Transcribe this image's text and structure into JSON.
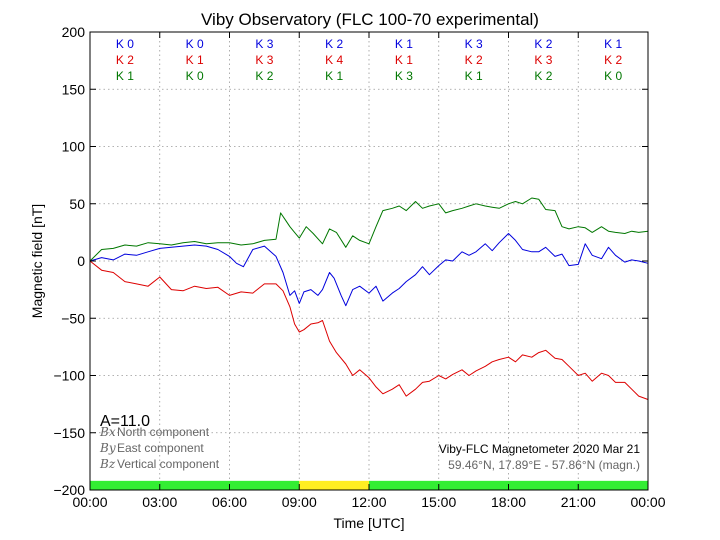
{
  "chart_data": {
    "type": "line",
    "title": "Viby Observatory (FLC 100-70 experimental)",
    "xlabel": "Time [UTC]",
    "ylabel": "Magnetic field [nT]",
    "xlim": [
      0,
      24
    ],
    "ylim": [
      -200,
      200
    ],
    "x_ticks": [
      "00:00",
      "03:00",
      "06:00",
      "09:00",
      "12:00",
      "15:00",
      "18:00",
      "21:00",
      "00:00"
    ],
    "y_ticks": [
      -200,
      -150,
      -100,
      -50,
      0,
      50,
      100,
      150,
      200
    ],
    "grid": true,
    "annotation": "A=11.0",
    "info": {
      "line1": "Viby-FLC Magnetometer 2020 Mar 21",
      "line2": "59.46°N, 17.89°E - 57.86°N (magn.)"
    },
    "k_indices": {
      "north": [
        "K 0",
        "K 0",
        "K 3",
        "K 2",
        "K 1",
        "K 3",
        "K 2",
        "K 1"
      ],
      "east": [
        "K 2",
        "K 1",
        "K 3",
        "K 4",
        "K 1",
        "K 2",
        "K 3",
        "K 2"
      ],
      "vertical": [
        "K 1",
        "K 0",
        "K 2",
        "K 1",
        "K 3",
        "K 1",
        "K 2",
        "K 0"
      ]
    },
    "activity_bar": [
      {
        "start": 0,
        "end": 9,
        "color": "#33ee33"
      },
      {
        "start": 9,
        "end": 12,
        "color": "#ffee22"
      },
      {
        "start": 12,
        "end": 24,
        "color": "#33ee33"
      }
    ],
    "series": [
      {
        "name": "North component",
        "symbol": "Bx",
        "color": "#0000dd",
        "x": [
          0,
          0.5,
          1,
          1.5,
          2,
          2.5,
          3,
          3.5,
          4,
          4.5,
          5,
          5.5,
          6,
          6.3,
          6.6,
          7,
          7.5,
          8,
          8.3,
          8.6,
          8.8,
          9,
          9.2,
          9.5,
          9.8,
          10,
          10.3,
          10.5,
          10.8,
          11,
          11.3,
          11.6,
          12,
          12.3,
          12.6,
          13,
          13.3,
          13.6,
          14,
          14.3,
          14.6,
          15,
          15.3,
          15.6,
          16,
          16.3,
          16.6,
          17,
          17.3,
          17.6,
          18,
          18.3,
          18.6,
          19,
          19.3,
          19.6,
          20,
          20.3,
          20.6,
          21,
          21.3,
          21.6,
          22,
          22.3,
          22.6,
          23,
          23.3,
          23.6,
          24
        ],
        "y": [
          0,
          3,
          1,
          6,
          5,
          8,
          11,
          12,
          13,
          14,
          13,
          10,
          4,
          -2,
          -5,
          10,
          13,
          4,
          -10,
          -30,
          -26,
          -37,
          -27,
          -25,
          -30,
          -25,
          -10,
          -15,
          -30,
          -39,
          -25,
          -22,
          -28,
          -22,
          -35,
          -28,
          -24,
          -18,
          -12,
          -5,
          -12,
          -4,
          1,
          0,
          8,
          5,
          8,
          15,
          9,
          16,
          24,
          18,
          10,
          8,
          8,
          12,
          4,
          6,
          -4,
          -3,
          15,
          5,
          2,
          12,
          5,
          -1,
          1,
          0,
          -2
        ]
      },
      {
        "name": "East component",
        "symbol": "By",
        "color": "#dd0000",
        "x": [
          0,
          0.5,
          1,
          1.5,
          2,
          2.5,
          3,
          3.5,
          4,
          4.5,
          5,
          5.5,
          6,
          6.5,
          7,
          7.5,
          8,
          8.3,
          8.6,
          8.8,
          9,
          9.2,
          9.5,
          9.8,
          10,
          10.3,
          10.6,
          11,
          11.3,
          11.6,
          12,
          12.3,
          12.6,
          13,
          13.3,
          13.6,
          14,
          14.3,
          14.6,
          15,
          15.3,
          15.6,
          16,
          16.3,
          16.6,
          17,
          17.3,
          17.6,
          18,
          18.3,
          18.6,
          19,
          19.3,
          19.6,
          20,
          20.3,
          20.6,
          21,
          21.3,
          21.6,
          22,
          22.3,
          22.6,
          23,
          23.3,
          23.6,
          24
        ],
        "y": [
          0,
          -8,
          -10,
          -18,
          -20,
          -22,
          -14,
          -25,
          -26,
          -22,
          -24,
          -23,
          -30,
          -27,
          -28,
          -20,
          -20,
          -26,
          -40,
          -55,
          -62,
          -60,
          -55,
          -54,
          -52,
          -70,
          -80,
          -90,
          -100,
          -95,
          -102,
          -110,
          -116,
          -112,
          -108,
          -118,
          -112,
          -106,
          -105,
          -100,
          -103,
          -99,
          -95,
          -100,
          -96,
          -92,
          -88,
          -86,
          -84,
          -88,
          -82,
          -84,
          -80,
          -78,
          -85,
          -86,
          -92,
          -100,
          -98,
          -105,
          -98,
          -100,
          -106,
          -106,
          -112,
          -118,
          -121
        ]
      },
      {
        "name": "Vertical component",
        "symbol": "Bz",
        "color": "#007700",
        "x": [
          0,
          0.5,
          1,
          1.5,
          2,
          2.5,
          3,
          3.5,
          4,
          4.5,
          5,
          5.5,
          6,
          6.5,
          7,
          7.5,
          8,
          8.2,
          8.4,
          8.6,
          8.8,
          9,
          9.3,
          9.6,
          10,
          10.3,
          10.6,
          11,
          11.3,
          11.6,
          12,
          12.3,
          12.6,
          13,
          13.3,
          13.6,
          14,
          14.3,
          14.6,
          15,
          15.3,
          15.6,
          16,
          16.3,
          16.6,
          17,
          17.3,
          17.6,
          18,
          18.3,
          18.6,
          19,
          19.3,
          19.6,
          20,
          20.3,
          20.6,
          21,
          21.3,
          21.6,
          22,
          22.3,
          22.6,
          23,
          23.3,
          23.6,
          24
        ],
        "y": [
          0,
          10,
          11,
          14,
          13,
          16,
          15,
          14,
          16,
          17,
          15,
          16,
          16,
          14,
          15,
          18,
          19,
          42,
          36,
          30,
          25,
          20,
          30,
          24,
          15,
          28,
          25,
          12,
          22,
          18,
          15,
          30,
          44,
          46,
          48,
          44,
          52,
          46,
          48,
          50,
          42,
          44,
          46,
          48,
          50,
          48,
          47,
          46,
          50,
          52,
          50,
          55,
          54,
          45,
          44,
          30,
          28,
          30,
          29,
          25,
          30,
          26,
          25,
          24,
          26,
          25,
          26
        ]
      }
    ]
  }
}
